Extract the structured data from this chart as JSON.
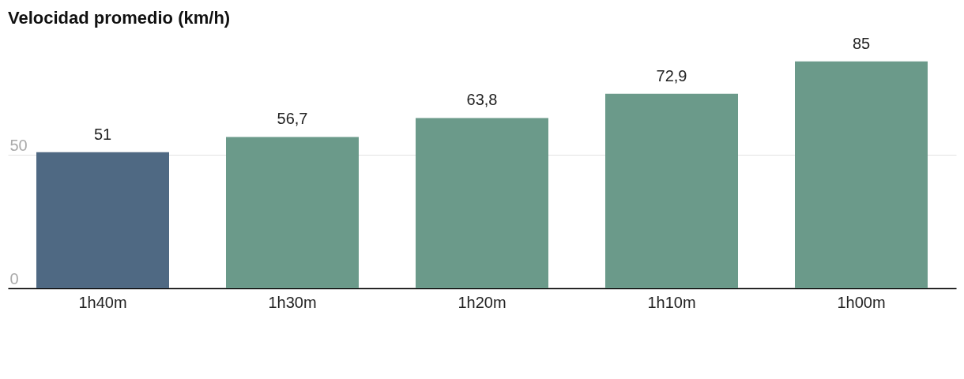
{
  "chart_data": {
    "type": "bar",
    "title": "Velocidad promedio (km/h)",
    "categories": [
      "1h40m",
      "1h30m",
      "1h20m",
      "1h10m",
      "1h00m"
    ],
    "values": [
      51,
      56.7,
      63.8,
      72.9,
      85
    ],
    "value_labels": [
      "51",
      "56,7",
      "63,8",
      "72,9",
      "85"
    ],
    "colors": [
      "#4f6983",
      "#6b9a8a",
      "#6b9a8a",
      "#6b9a8a",
      "#6b9a8a"
    ],
    "ylim": [
      0,
      108
    ],
    "yticks": [
      0,
      50
    ],
    "grid": "y"
  }
}
